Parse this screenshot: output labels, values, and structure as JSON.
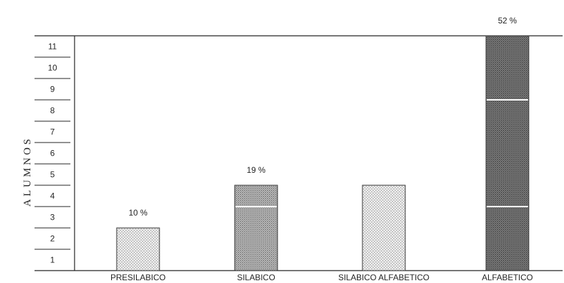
{
  "chart_data": {
    "type": "bar",
    "title": "",
    "xlabel": "",
    "ylabel": "ALUMNOS",
    "categories": [
      "PRESILABICO",
      "SILABICO",
      "SILABICO ALFABETICO",
      "ALFABETICO"
    ],
    "values": [
      2,
      4,
      4,
      11
    ],
    "data_labels": [
      "10 %",
      "19 %",
      "",
      "52 %"
    ],
    "yticks": [
      "1",
      "2",
      "3",
      "4",
      "5",
      "6",
      "7",
      "8",
      "9",
      "10",
      "11"
    ],
    "ylim": [
      0,
      11
    ],
    "grid": false,
    "legend": "none",
    "colors": {
      "light_fill": "#cfcfcf",
      "dark_fill": "#6b6b6b",
      "axis": "#222222"
    }
  }
}
